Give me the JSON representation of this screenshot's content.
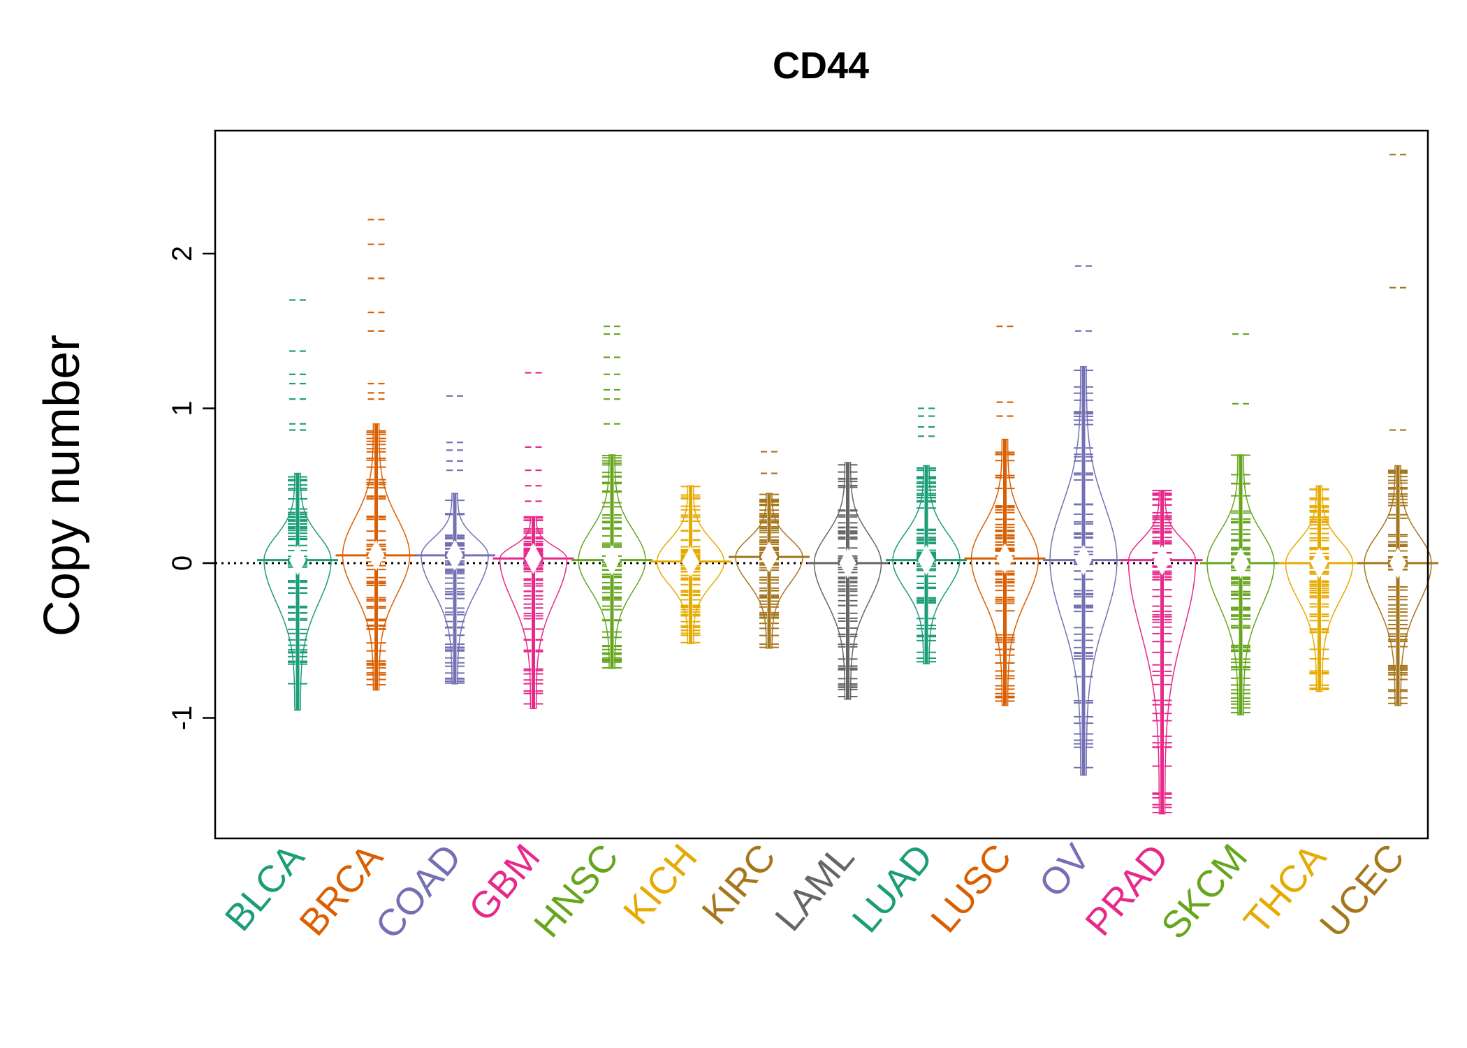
{
  "chart_data": {
    "type": "beanplot",
    "title": "CD44",
    "xlabel": "",
    "ylabel": "Copy number",
    "ylim": [
      -1.75,
      2.8
    ],
    "yticks": [
      -1,
      0,
      1,
      2
    ],
    "reference_line": 0,
    "grid": false,
    "legend": "none",
    "categories": [
      "BLCA",
      "BRCA",
      "COAD",
      "GBM",
      "HNSC",
      "KICH",
      "KIRC",
      "LAML",
      "LUAD",
      "LUSC",
      "OV",
      "PRAD",
      "SKCM",
      "THCA",
      "UCEC"
    ],
    "colors": [
      "#1B9E77",
      "#D95F02",
      "#7570B3",
      "#E7298A",
      "#66A61E",
      "#E6AB02",
      "#A6761D",
      "#666666",
      "#1B9E77",
      "#D95F02",
      "#7570B3",
      "#E7298A",
      "#66A61E",
      "#E6AB02",
      "#A6761D"
    ],
    "series": [
      {
        "category": "BLCA",
        "min": -0.95,
        "max": 0.58,
        "mean": 0.02,
        "outliers": [
          0.86,
          0.9,
          1.06,
          1.16,
          1.22,
          1.37,
          1.7
        ]
      },
      {
        "category": "BRCA",
        "min": -0.82,
        "max": 0.9,
        "mean": 0.05,
        "outliers": [
          1.06,
          1.1,
          1.16,
          1.5,
          1.62,
          1.84,
          2.06,
          2.22
        ]
      },
      {
        "category": "COAD",
        "min": -0.78,
        "max": 0.45,
        "mean": 0.05,
        "outliers": [
          0.6,
          0.66,
          0.73,
          0.78,
          1.08
        ]
      },
      {
        "category": "GBM",
        "min": -0.94,
        "max": 0.3,
        "mean": 0.03,
        "outliers": [
          0.4,
          0.5,
          0.6,
          0.75,
          1.23
        ]
      },
      {
        "category": "HNSC",
        "min": -0.68,
        "max": 0.7,
        "mean": 0.02,
        "outliers": [
          0.9,
          1.06,
          1.12,
          1.22,
          1.33,
          1.48,
          1.53
        ]
      },
      {
        "category": "KICH",
        "min": -0.52,
        "max": 0.5,
        "mean": 0.01,
        "outliers": []
      },
      {
        "category": "KIRC",
        "min": -0.55,
        "max": 0.45,
        "mean": 0.04,
        "outliers": [
          0.58,
          0.72
        ]
      },
      {
        "category": "LAML",
        "min": -0.88,
        "max": 0.65,
        "mean": 0.0,
        "outliers": []
      },
      {
        "category": "LUAD",
        "min": -0.65,
        "max": 0.63,
        "mean": 0.02,
        "outliers": [
          0.82,
          0.88,
          0.95,
          1.0
        ]
      },
      {
        "category": "LUSC",
        "min": -0.92,
        "max": 0.8,
        "mean": 0.03,
        "outliers": [
          0.95,
          1.04,
          1.53
        ]
      },
      {
        "category": "OV",
        "min": -1.37,
        "max": 1.27,
        "mean": 0.02,
        "outliers": [
          1.5,
          1.92
        ]
      },
      {
        "category": "PRAD",
        "min": -1.62,
        "max": 0.47,
        "mean": 0.02,
        "outliers": []
      },
      {
        "category": "SKCM",
        "min": -0.98,
        "max": 0.7,
        "mean": 0.0,
        "outliers": [
          1.03,
          1.48
        ]
      },
      {
        "category": "THCA",
        "min": -0.83,
        "max": 0.5,
        "mean": 0.0,
        "outliers": []
      },
      {
        "category": "UCEC",
        "min": -0.92,
        "max": 0.63,
        "mean": 0.0,
        "outliers": [
          0.86,
          1.78,
          2.64
        ]
      }
    ]
  }
}
